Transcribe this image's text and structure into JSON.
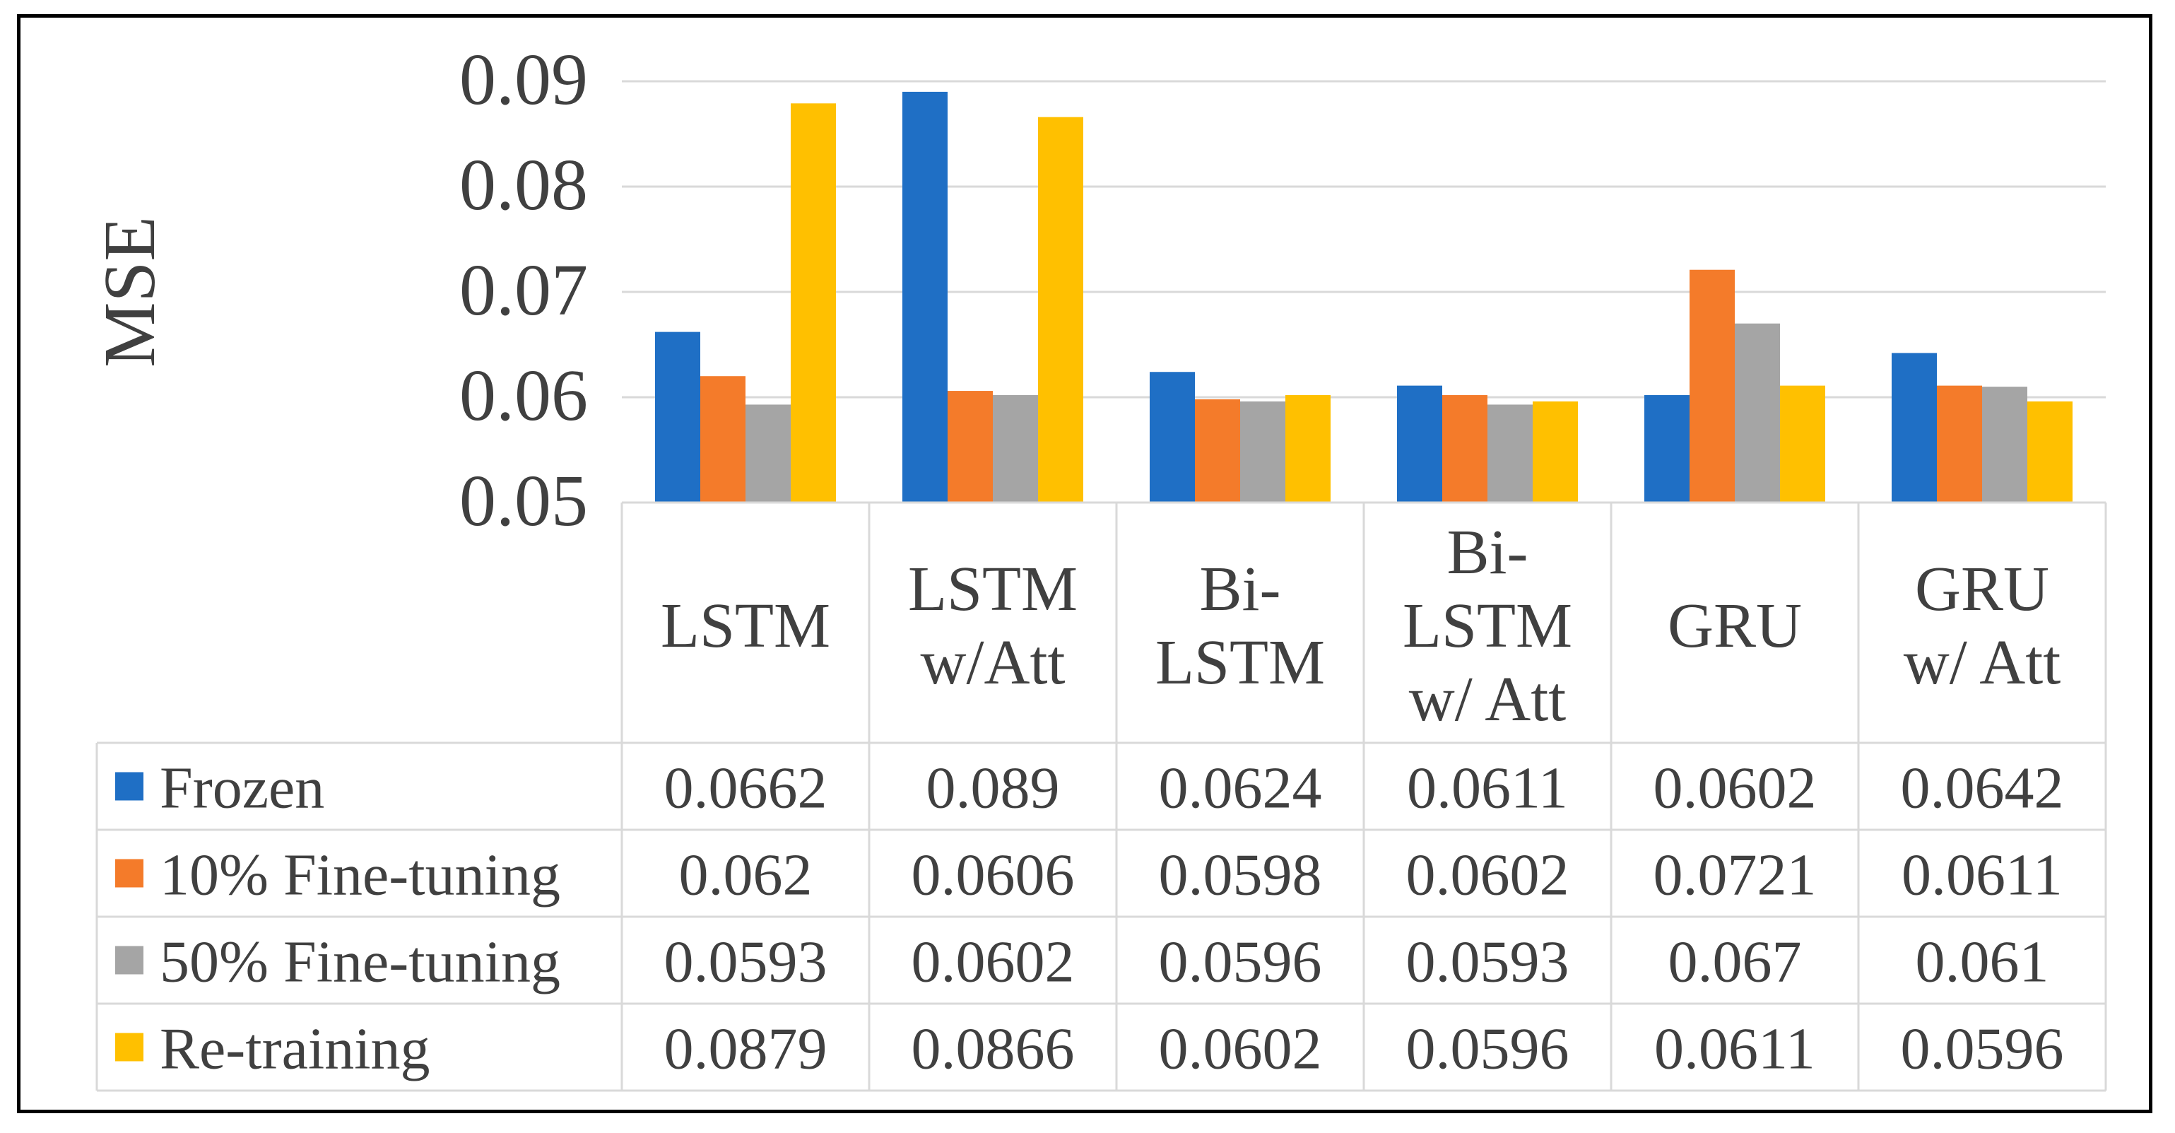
{
  "chart_data": {
    "type": "bar",
    "title": "",
    "ylabel": "MSE",
    "xlabel": "",
    "ylim": [
      0.05,
      0.09
    ],
    "yticks": [
      "0.05",
      "0.06",
      "0.07",
      "0.08",
      "0.09"
    ],
    "grid": true,
    "categories": [
      [
        "LSTM"
      ],
      [
        "LSTM",
        "w/Att"
      ],
      [
        "Bi-",
        "LSTM"
      ],
      [
        "Bi-",
        "LSTM",
        "w/ Att"
      ],
      [
        "GRU"
      ],
      [
        "GRU",
        "w/ Att"
      ]
    ],
    "series": [
      {
        "name": "Frozen",
        "color": "#1F6FC5",
        "values": [
          0.0662,
          0.089,
          0.0624,
          0.0611,
          0.0602,
          0.0642
        ],
        "labels": [
          "0.0662",
          "0.089",
          "0.0624",
          "0.0611",
          "0.0602",
          "0.0642"
        ]
      },
      {
        "name": "10% Fine-tuning",
        "color": "#F47B2A",
        "values": [
          0.062,
          0.0606,
          0.0598,
          0.0602,
          0.0721,
          0.0611
        ],
        "labels": [
          "0.062",
          "0.0606",
          "0.0598",
          "0.0602",
          "0.0721",
          "0.0611"
        ]
      },
      {
        "name": "50% Fine-tuning",
        "color": "#A5A5A5",
        "values": [
          0.0593,
          0.0602,
          0.0596,
          0.0593,
          0.067,
          0.061
        ],
        "labels": [
          "0.0593",
          "0.0602",
          "0.0596",
          "0.0593",
          "0.067",
          "0.061"
        ]
      },
      {
        "name": "Re-training",
        "color": "#FFC000",
        "values": [
          0.0879,
          0.0866,
          0.0602,
          0.0596,
          0.0611,
          0.0596
        ],
        "labels": [
          "0.0879",
          "0.0866",
          "0.0602",
          "0.0596",
          "0.0611",
          "0.0596"
        ]
      }
    ],
    "legend_position": "data-table-left"
  }
}
